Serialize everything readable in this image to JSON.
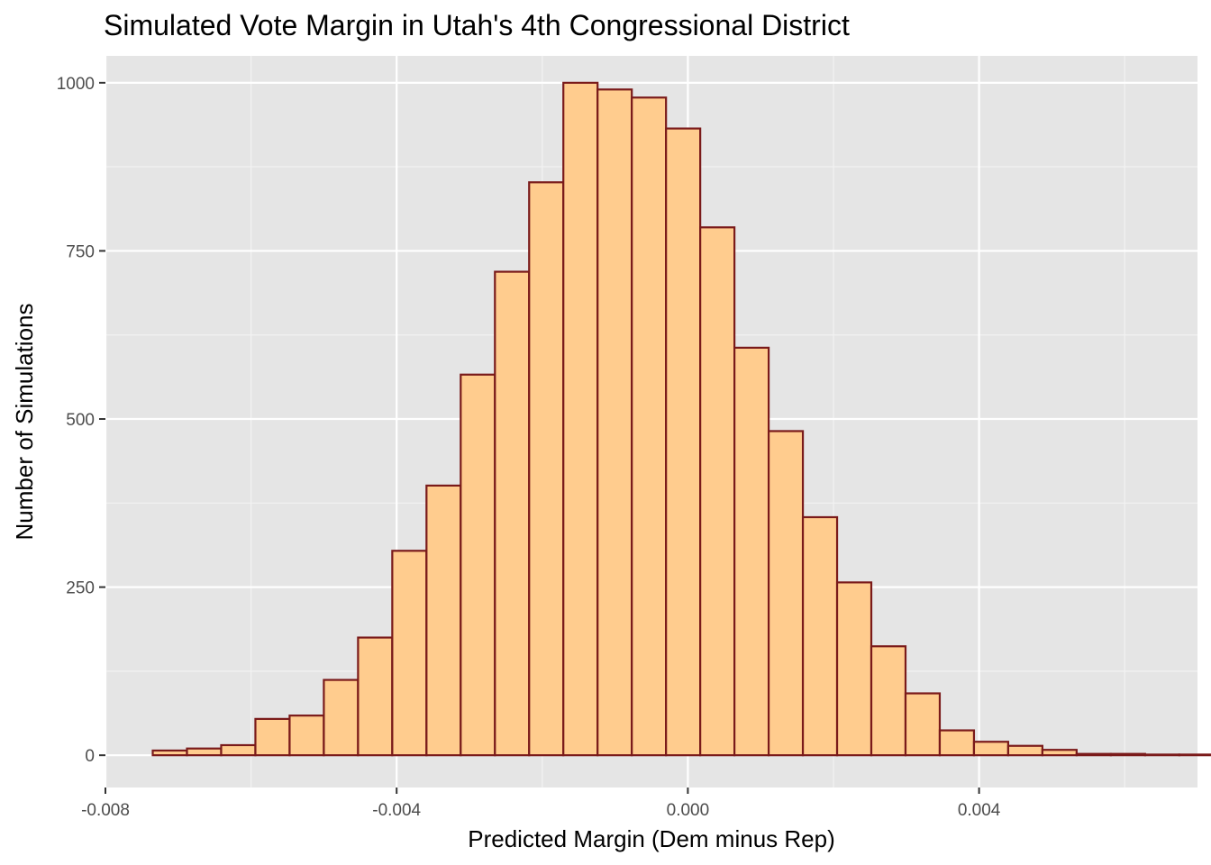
{
  "chart_data": {
    "type": "bar",
    "subtype": "histogram",
    "title": "Simulated Vote Margin in Utah's 4th Congressional District",
    "xlabel": "Predicted Margin (Dem minus Rep)",
    "ylabel": "Number of Simulations",
    "xlim": [
      -0.008,
      0.007
    ],
    "ylim": [
      -48,
      1040
    ],
    "x_ticks": [
      -0.008,
      -0.004,
      0.0,
      0.004
    ],
    "x_tick_labels": [
      "-0.008",
      "-0.004",
      "0.000",
      "0.004"
    ],
    "y_ticks": [
      0,
      250,
      500,
      750,
      1000
    ],
    "y_tick_labels": [
      "0",
      "250",
      "500",
      "750",
      "1000"
    ],
    "grid": true,
    "bin_width": 0.00047,
    "bins": [
      {
        "x0": -0.00735,
        "x1": -0.00688,
        "count": 7
      },
      {
        "x0": -0.00688,
        "x1": -0.00641,
        "count": 10
      },
      {
        "x0": -0.00641,
        "x1": -0.00594,
        "count": 15
      },
      {
        "x0": -0.00594,
        "x1": -0.00547,
        "count": 54
      },
      {
        "x0": -0.00547,
        "x1": -0.005,
        "count": 59
      },
      {
        "x0": -0.005,
        "x1": -0.00453,
        "count": 112
      },
      {
        "x0": -0.00453,
        "x1": -0.00406,
        "count": 175
      },
      {
        "x0": -0.00406,
        "x1": -0.00359,
        "count": 304
      },
      {
        "x0": -0.00359,
        "x1": -0.00312,
        "count": 401
      },
      {
        "x0": -0.00312,
        "x1": -0.00265,
        "count": 566
      },
      {
        "x0": -0.00265,
        "x1": -0.00218,
        "count": 719
      },
      {
        "x0": -0.00218,
        "x1": -0.00171,
        "count": 852
      },
      {
        "x0": -0.00171,
        "x1": -0.00124,
        "count": 1000
      },
      {
        "x0": -0.00124,
        "x1": -0.00077,
        "count": 990
      },
      {
        "x0": -0.00077,
        "x1": -0.0003,
        "count": 978
      },
      {
        "x0": -0.0003,
        "x1": 0.00017,
        "count": 932
      },
      {
        "x0": 0.00017,
        "x1": 0.00064,
        "count": 785
      },
      {
        "x0": 0.00064,
        "x1": 0.00111,
        "count": 606
      },
      {
        "x0": 0.00111,
        "x1": 0.00158,
        "count": 482
      },
      {
        "x0": 0.00158,
        "x1": 0.00205,
        "count": 354
      },
      {
        "x0": 0.00205,
        "x1": 0.00252,
        "count": 257
      },
      {
        "x0": 0.00252,
        "x1": 0.00299,
        "count": 162
      },
      {
        "x0": 0.00299,
        "x1": 0.00346,
        "count": 92
      },
      {
        "x0": 0.00346,
        "x1": 0.00393,
        "count": 37
      },
      {
        "x0": 0.00393,
        "x1": 0.0044,
        "count": 20
      },
      {
        "x0": 0.0044,
        "x1": 0.00487,
        "count": 14
      },
      {
        "x0": 0.00487,
        "x1": 0.00534,
        "count": 8
      },
      {
        "x0": 0.00534,
        "x1": 0.00581,
        "count": 2
      },
      {
        "x0": 0.00581,
        "x1": 0.00628,
        "count": 2
      },
      {
        "x0": 0.00628,
        "x1": 0.00675,
        "count": 1
      },
      {
        "x0": 0.00675,
        "x1": 0.00722,
        "count": 1
      }
    ],
    "colors": {
      "bar_fill": "#FFCC8E",
      "bar_outline": "#7A1A1A",
      "panel_background": "#E5E5E5",
      "grid_major": "#FFFFFF",
      "grid_minor": "#F2F2F2",
      "tick_text": "#4D4D4D",
      "tick_mark": "#333333"
    }
  }
}
